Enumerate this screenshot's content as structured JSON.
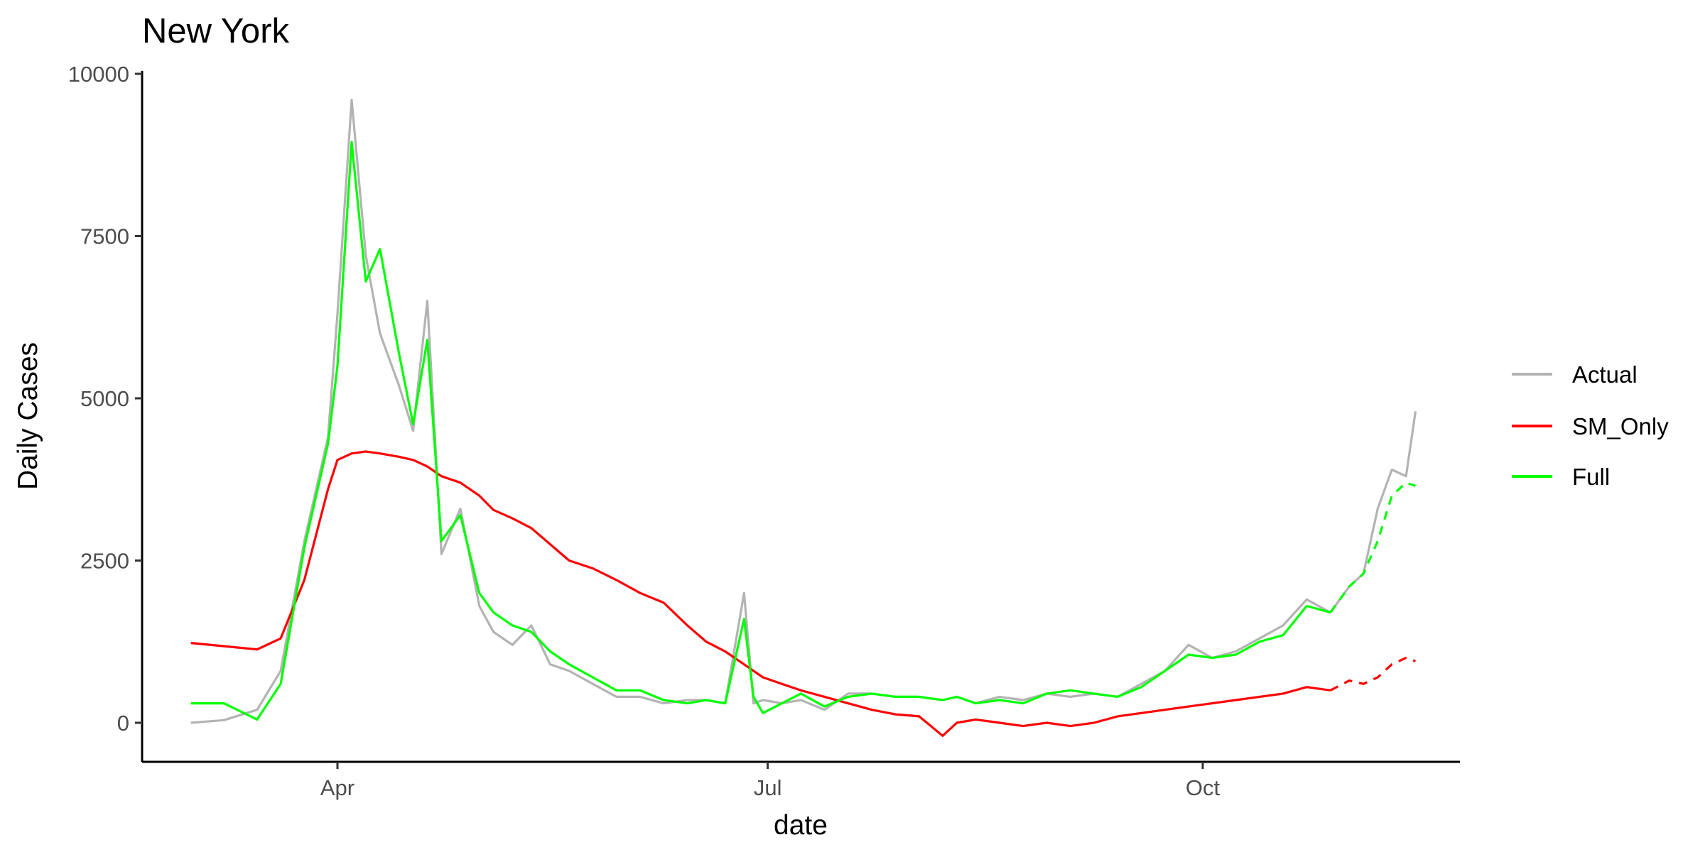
{
  "chart_data": {
    "type": "line",
    "title": "New York",
    "xlabel": "date",
    "ylabel": "Daily Cases",
    "x_ticks": [
      "Apr",
      "Jul",
      "Oct"
    ],
    "y_ticks": [
      0,
      2500,
      5000,
      7500,
      10000
    ],
    "ylim": [
      -700,
      10000
    ],
    "grid": false,
    "legend_position": "right",
    "x": [
      "2020-03-01",
      "2020-03-08",
      "2020-03-15",
      "2020-03-20",
      "2020-03-25",
      "2020-03-30",
      "2020-04-01",
      "2020-04-04",
      "2020-04-07",
      "2020-04-10",
      "2020-04-14",
      "2020-04-17",
      "2020-04-20",
      "2020-04-23",
      "2020-04-27",
      "2020-05-01",
      "2020-05-04",
      "2020-05-08",
      "2020-05-12",
      "2020-05-16",
      "2020-05-20",
      "2020-05-25",
      "2020-05-30",
      "2020-06-04",
      "2020-06-09",
      "2020-06-14",
      "2020-06-18",
      "2020-06-22",
      "2020-06-26",
      "2020-06-28",
      "2020-06-30",
      "2020-07-04",
      "2020-07-08",
      "2020-07-13",
      "2020-07-18",
      "2020-07-23",
      "2020-07-28",
      "2020-08-02",
      "2020-08-07",
      "2020-08-10",
      "2020-08-14",
      "2020-08-19",
      "2020-08-24",
      "2020-08-29",
      "2020-09-03",
      "2020-09-08",
      "2020-09-13",
      "2020-09-18",
      "2020-09-23",
      "2020-09-28",
      "2020-10-03",
      "2020-10-08",
      "2020-10-13",
      "2020-10-18",
      "2020-10-23",
      "2020-10-28",
      "2020-11-01",
      "2020-11-04",
      "2020-11-07",
      "2020-11-10",
      "2020-11-13",
      "2020-11-15"
    ],
    "series": [
      {
        "name": "Actual",
        "color": "#b3b3b3",
        "values": [
          0,
          40,
          200,
          800,
          2800,
          4400,
          6300,
          9600,
          7200,
          6000,
          5200,
          4500,
          6500,
          2600,
          3300,
          1800,
          1400,
          1200,
          1500,
          900,
          800,
          600,
          400,
          400,
          300,
          350,
          350,
          300,
          2000,
          300,
          350,
          300,
          350,
          200,
          450,
          450,
          400,
          400,
          350,
          400,
          300,
          400,
          350,
          450,
          400,
          450,
          400,
          600,
          800,
          1200,
          1000,
          1100,
          1300,
          1500,
          1900,
          1700,
          2100,
          2300,
          3300,
          3900,
          3800,
          4800
        ]
      },
      {
        "name": "SM_Only",
        "color": "#ff0000",
        "values": [
          1230,
          1180,
          1130,
          1300,
          2200,
          3600,
          4050,
          4150,
          4180,
          4150,
          4100,
          4050,
          3950,
          3800,
          3700,
          3500,
          3280,
          3150,
          3000,
          2750,
          2500,
          2380,
          2200,
          2000,
          1850,
          1500,
          1250,
          1100,
          900,
          800,
          700,
          600,
          500,
          400,
          300,
          200,
          130,
          100,
          -200,
          0,
          50,
          0,
          -50,
          0,
          -50,
          0,
          100,
          150,
          200,
          250,
          300,
          350,
          400,
          450,
          550,
          500,
          650,
          600,
          700,
          900,
          1000,
          950
        ]
      },
      {
        "name": "Full",
        "color": "#00ff00",
        "values": [
          300,
          300,
          50,
          600,
          2700,
          4300,
          5500,
          8950,
          6800,
          7300,
          5700,
          4600,
          5900,
          2800,
          3200,
          2000,
          1700,
          1500,
          1400,
          1100,
          900,
          700,
          500,
          500,
          350,
          300,
          350,
          300,
          1600,
          400,
          150,
          300,
          450,
          250,
          400,
          450,
          400,
          400,
          350,
          400,
          300,
          350,
          300,
          450,
          500,
          450,
          400,
          550,
          800,
          1050,
          1000,
          1050,
          1250,
          1350,
          1800,
          1700,
          2100,
          2300,
          2800,
          3500,
          3700,
          3650
        ]
      }
    ],
    "projection_start": "2020-10-28"
  }
}
